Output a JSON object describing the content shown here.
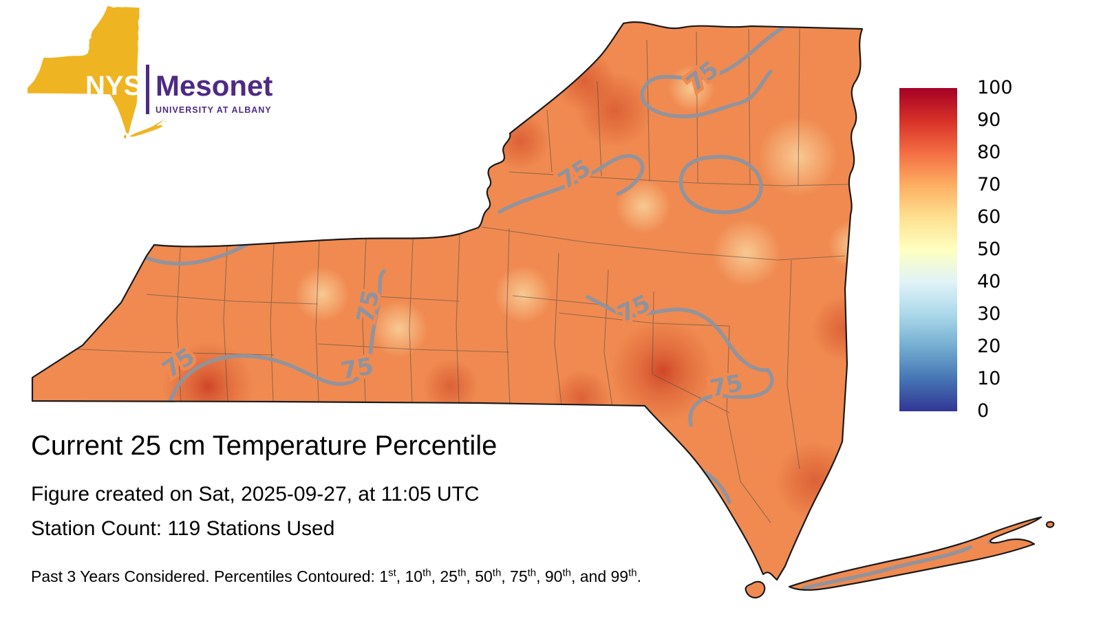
{
  "logo": {
    "nys": "NYS",
    "mesonet": "Mesonet",
    "subtitle": "UNIVERSITY AT ALBANY"
  },
  "title": "Current 25 cm Temperature Percentile",
  "created_line": "Figure created on Sat, 2025-09-27, at 11:05 UTC",
  "station_line": "Station Count: 119 Stations Used",
  "footnote": {
    "prefix": "Past 3 Years Considered. Percentiles Contoured: ",
    "items": [
      {
        "pre": "",
        "n": "1",
        "sup": "st"
      },
      {
        "pre": ", ",
        "n": "10",
        "sup": "th"
      },
      {
        "pre": ", ",
        "n": "25",
        "sup": "th"
      },
      {
        "pre": ", ",
        "n": "50",
        "sup": "th"
      },
      {
        "pre": ", ",
        "n": "75",
        "sup": "th"
      },
      {
        "pre": ", ",
        "n": "90",
        "sup": "th"
      },
      {
        "pre": ", and ",
        "n": "99",
        "sup": "th"
      }
    ],
    "suffix": "."
  },
  "map": {
    "contour_label": "75"
  },
  "colorbar": {
    "ticks": [
      "100",
      "90",
      "80",
      "70",
      "60",
      "50",
      "40",
      "30",
      "20",
      "10",
      "0"
    ],
    "stops": [
      "#a50026",
      "#d73027",
      "#f46d43",
      "#fdae61",
      "#fee090",
      "#ffffbf",
      "#e0f3f8",
      "#abd9e9",
      "#74add1",
      "#4575b4",
      "#313695"
    ]
  },
  "colors": {
    "map_base": "#F08A50",
    "state_outline": "#1a1a1a",
    "county_line": "#4a4a4a",
    "contour": "#8D93A0",
    "warm_spot": "#D4502C",
    "warm_spot_strong": "#C93A20",
    "cool_spot": "#F9D49E",
    "logo_gold": "#EFB421",
    "logo_purple": "#4E2A84",
    "text": "#000000"
  }
}
